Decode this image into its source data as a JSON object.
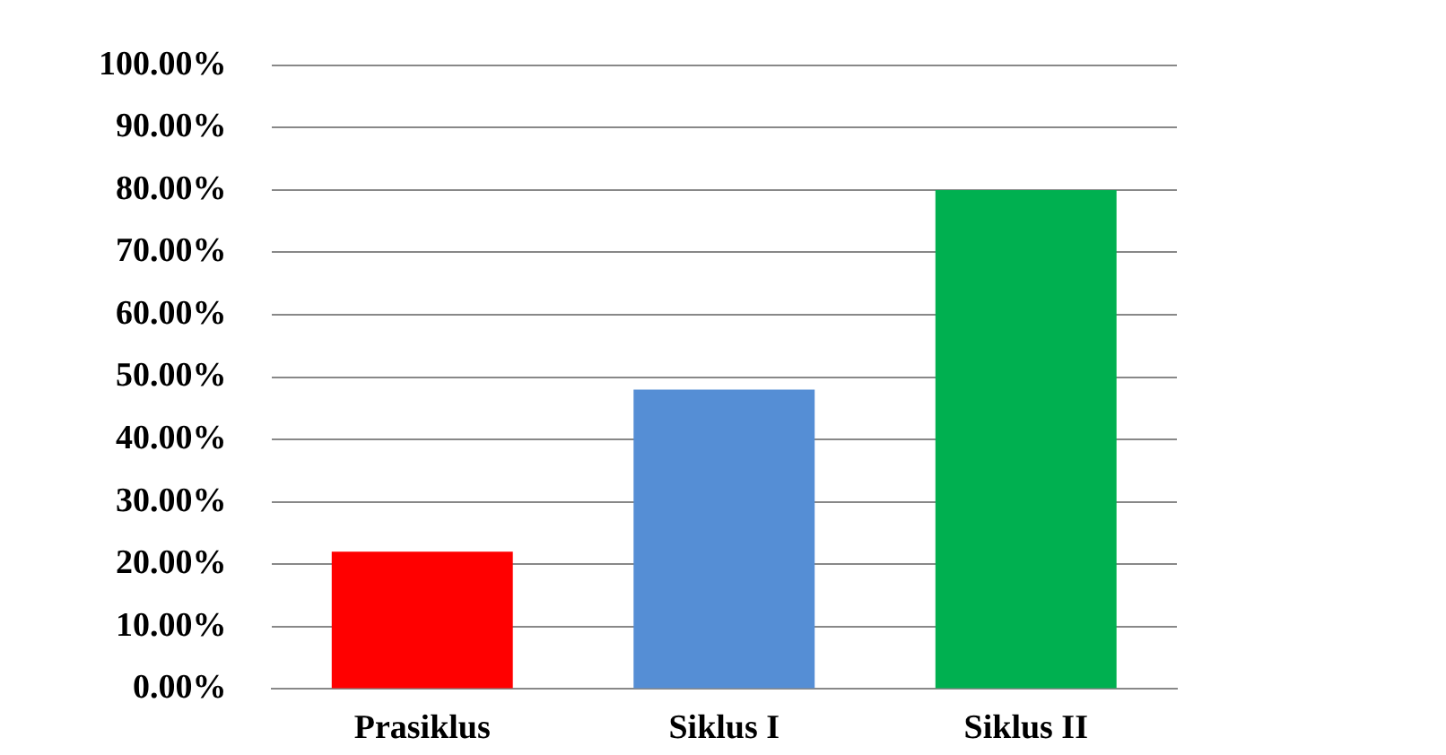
{
  "chart_data": {
    "type": "bar",
    "categories": [
      "Prasiklus",
      "Siklus I",
      "Siklus II"
    ],
    "values": [
      22,
      48,
      80
    ],
    "colors": [
      "#ff0000",
      "#558ed5",
      "#00b050"
    ],
    "ylim": [
      0,
      100
    ],
    "yticks": [
      {
        "value": 0,
        "label": "0.00%"
      },
      {
        "value": 10,
        "label": "10.00%"
      },
      {
        "value": 20,
        "label": "20.00%"
      },
      {
        "value": 30,
        "label": "30.00%"
      },
      {
        "value": 40,
        "label": "40.00%"
      },
      {
        "value": 50,
        "label": "50.00%"
      },
      {
        "value": 60,
        "label": "60.00%"
      },
      {
        "value": 70,
        "label": "70.00%"
      },
      {
        "value": 80,
        "label": "80.00%"
      },
      {
        "value": 90,
        "label": "90.00%"
      },
      {
        "value": 100,
        "label": "100.00%"
      }
    ],
    "grid": "y"
  }
}
